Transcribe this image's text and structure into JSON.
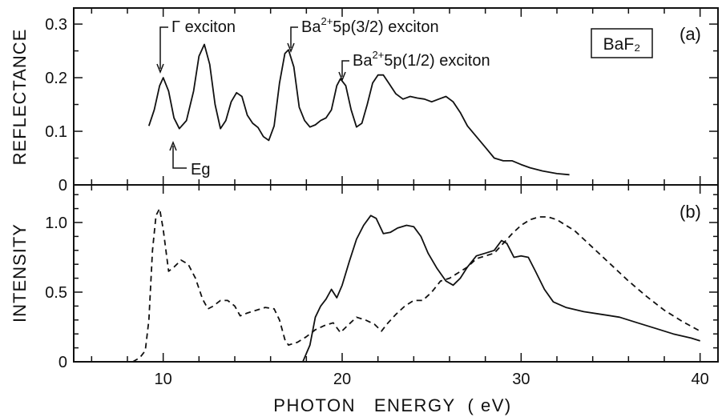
{
  "chart_data": [
    {
      "panel": "(a)",
      "type": "line",
      "ylabel": "REFLECTANCE",
      "xlim": [
        5,
        41
      ],
      "ylim": [
        0,
        0.33
      ],
      "x_ticks": [
        10,
        20,
        30,
        40
      ],
      "y_ticks": [
        0,
        0.1,
        0.2,
        0.3
      ],
      "y_tick_labels": [
        "0",
        "0.1",
        "0.2",
        "0.3"
      ],
      "grid": false,
      "series": [
        {
          "style": "solid",
          "points": [
            [
              9.2,
              0.11
            ],
            [
              9.5,
              0.14
            ],
            [
              9.8,
              0.185
            ],
            [
              10.0,
              0.2
            ],
            [
              10.3,
              0.175
            ],
            [
              10.6,
              0.125
            ],
            [
              10.9,
              0.105
            ],
            [
              11.3,
              0.12
            ],
            [
              11.7,
              0.175
            ],
            [
              12.0,
              0.24
            ],
            [
              12.3,
              0.262
            ],
            [
              12.6,
              0.225
            ],
            [
              12.9,
              0.15
            ],
            [
              13.2,
              0.105
            ],
            [
              13.5,
              0.12
            ],
            [
              13.8,
              0.155
            ],
            [
              14.1,
              0.172
            ],
            [
              14.4,
              0.165
            ],
            [
              14.7,
              0.13
            ],
            [
              15.0,
              0.115
            ],
            [
              15.3,
              0.107
            ],
            [
              15.6,
              0.09
            ],
            [
              15.9,
              0.083
            ],
            [
              16.2,
              0.11
            ],
            [
              16.5,
              0.19
            ],
            [
              16.8,
              0.245
            ],
            [
              17.0,
              0.252
            ],
            [
              17.3,
              0.22
            ],
            [
              17.6,
              0.145
            ],
            [
              17.9,
              0.12
            ],
            [
              18.2,
              0.108
            ],
            [
              18.5,
              0.112
            ],
            [
              18.8,
              0.12
            ],
            [
              19.1,
              0.125
            ],
            [
              19.4,
              0.14
            ],
            [
              19.7,
              0.185
            ],
            [
              19.9,
              0.198
            ],
            [
              20.2,
              0.185
            ],
            [
              20.5,
              0.14
            ],
            [
              20.8,
              0.108
            ],
            [
              21.1,
              0.115
            ],
            [
              21.4,
              0.15
            ],
            [
              21.7,
              0.19
            ],
            [
              22.0,
              0.205
            ],
            [
              22.3,
              0.205
            ],
            [
              22.6,
              0.19
            ],
            [
              23.0,
              0.17
            ],
            [
              23.4,
              0.16
            ],
            [
              23.8,
              0.165
            ],
            [
              24.2,
              0.162
            ],
            [
              24.6,
              0.16
            ],
            [
              25.0,
              0.155
            ],
            [
              25.4,
              0.16
            ],
            [
              25.8,
              0.165
            ],
            [
              26.2,
              0.155
            ],
            [
              26.6,
              0.135
            ],
            [
              27.0,
              0.11
            ],
            [
              27.5,
              0.09
            ],
            [
              28.0,
              0.07
            ],
            [
              28.5,
              0.05
            ],
            [
              29.0,
              0.045
            ],
            [
              29.5,
              0.045
            ],
            [
              30.0,
              0.038
            ],
            [
              30.5,
              0.032
            ],
            [
              31.2,
              0.026
            ],
            [
              32.0,
              0.021
            ],
            [
              32.7,
              0.019
            ]
          ]
        }
      ],
      "annotations": [
        {
          "text": "Γ exciton",
          "x": 10.0,
          "y": 0.2
        },
        {
          "text": "Ba²⁺5p(3/2) exciton",
          "x": 17.0,
          "y": 0.252
        },
        {
          "text": "Ba²⁺5p(1/2) exciton",
          "x": 19.9,
          "y": 0.198
        },
        {
          "text": "Eg",
          "x": 10.8,
          "y": 0.105
        }
      ],
      "legend_box": "BaF₂"
    },
    {
      "panel": "(b)",
      "type": "line",
      "xlabel": "PHOTON   ENERGY  ( eV)",
      "ylabel": "INTENSITY",
      "xlim": [
        5,
        41
      ],
      "ylim": [
        0,
        1.27
      ],
      "x_ticks": [
        10,
        20,
        30,
        40
      ],
      "x_tick_labels": [
        "10",
        "20",
        "30",
        "40"
      ],
      "y_ticks": [
        0,
        0.5,
        1.0
      ],
      "y_tick_labels": [
        "0",
        "0.5",
        "1.0"
      ],
      "grid": false,
      "series": [
        {
          "style": "solid",
          "points": [
            [
              17.8,
              0
            ],
            [
              18.2,
              0.12
            ],
            [
              18.5,
              0.32
            ],
            [
              18.8,
              0.4
            ],
            [
              19.1,
              0.45
            ],
            [
              19.4,
              0.52
            ],
            [
              19.7,
              0.46
            ],
            [
              20.0,
              0.55
            ],
            [
              20.4,
              0.72
            ],
            [
              20.8,
              0.88
            ],
            [
              21.2,
              0.98
            ],
            [
              21.6,
              1.05
            ],
            [
              21.9,
              1.03
            ],
            [
              22.3,
              0.92
            ],
            [
              22.7,
              0.93
            ],
            [
              23.1,
              0.96
            ],
            [
              23.6,
              0.98
            ],
            [
              24.0,
              0.97
            ],
            [
              24.4,
              0.9
            ],
            [
              24.8,
              0.78
            ],
            [
              25.3,
              0.67
            ],
            [
              25.8,
              0.58
            ],
            [
              26.2,
              0.55
            ],
            [
              26.6,
              0.6
            ],
            [
              27.0,
              0.68
            ],
            [
              27.5,
              0.76
            ],
            [
              28.0,
              0.78
            ],
            [
              28.5,
              0.8
            ],
            [
              28.9,
              0.87
            ],
            [
              29.2,
              0.85
            ],
            [
              29.6,
              0.75
            ],
            [
              30.0,
              0.76
            ],
            [
              30.4,
              0.75
            ],
            [
              30.8,
              0.65
            ],
            [
              31.3,
              0.52
            ],
            [
              31.8,
              0.43
            ],
            [
              32.5,
              0.39
            ],
            [
              33.5,
              0.36
            ],
            [
              34.5,
              0.34
            ],
            [
              35.5,
              0.32
            ],
            [
              36.5,
              0.28
            ],
            [
              37.5,
              0.24
            ],
            [
              38.5,
              0.2
            ],
            [
              39.5,
              0.17
            ],
            [
              40.0,
              0.15
            ]
          ]
        },
        {
          "style": "dashed",
          "points": [
            [
              8.3,
              0
            ],
            [
              8.7,
              0.03
            ],
            [
              9.0,
              0.08
            ],
            [
              9.2,
              0.3
            ],
            [
              9.4,
              0.8
            ],
            [
              9.6,
              1.05
            ],
            [
              9.8,
              1.1
            ],
            [
              10.0,
              0.95
            ],
            [
              10.3,
              0.65
            ],
            [
              10.6,
              0.68
            ],
            [
              11.0,
              0.73
            ],
            [
              11.4,
              0.7
            ],
            [
              11.8,
              0.6
            ],
            [
              12.2,
              0.45
            ],
            [
              12.5,
              0.38
            ],
            [
              12.8,
              0.4
            ],
            [
              13.2,
              0.44
            ],
            [
              13.6,
              0.44
            ],
            [
              14.0,
              0.4
            ],
            [
              14.3,
              0.33
            ],
            [
              14.7,
              0.35
            ],
            [
              15.2,
              0.37
            ],
            [
              15.7,
              0.39
            ],
            [
              16.2,
              0.38
            ],
            [
              16.5,
              0.3
            ],
            [
              16.8,
              0.16
            ],
            [
              17.0,
              0.12
            ],
            [
              17.5,
              0.14
            ],
            [
              18.0,
              0.18
            ],
            [
              18.5,
              0.23
            ],
            [
              19.0,
              0.26
            ],
            [
              19.5,
              0.28
            ],
            [
              19.9,
              0.21
            ],
            [
              20.3,
              0.26
            ],
            [
              20.8,
              0.32
            ],
            [
              21.3,
              0.3
            ],
            [
              21.8,
              0.27
            ],
            [
              22.2,
              0.22
            ],
            [
              22.5,
              0.27
            ],
            [
              23.0,
              0.34
            ],
            [
              23.5,
              0.4
            ],
            [
              24.0,
              0.44
            ],
            [
              24.5,
              0.44
            ],
            [
              25.0,
              0.5
            ],
            [
              25.5,
              0.58
            ],
            [
              26.0,
              0.6
            ],
            [
              26.5,
              0.64
            ],
            [
              27.0,
              0.68
            ],
            [
              27.5,
              0.74
            ],
            [
              28.0,
              0.76
            ],
            [
              28.5,
              0.78
            ],
            [
              29.0,
              0.85
            ],
            [
              29.5,
              0.92
            ],
            [
              30.0,
              0.98
            ],
            [
              30.5,
              1.02
            ],
            [
              31.0,
              1.04
            ],
            [
              31.5,
              1.04
            ],
            [
              32.0,
              1.02
            ],
            [
              33.0,
              0.94
            ],
            [
              34.0,
              0.82
            ],
            [
              35.0,
              0.7
            ],
            [
              36.0,
              0.58
            ],
            [
              37.0,
              0.47
            ],
            [
              38.0,
              0.37
            ],
            [
              39.0,
              0.29
            ],
            [
              40.0,
              0.22
            ]
          ]
        }
      ]
    }
  ],
  "labels": {
    "panel_a": "(a)",
    "panel_b": "(b)",
    "baf2": "BaF₂",
    "ylabel_a": "REFLECTANCE",
    "ylabel_b": "INTENSITY",
    "xlabel": "PHOTON   ENERGY  ( eV)",
    "gamma": "Γ exciton",
    "ba32_pre": "Ba",
    "ba32_sup": "2+",
    "ba32_post": "5p(3/2) exciton",
    "ba12_pre": "Ba",
    "ba12_sup": "2+",
    "ba12_post": "5p(1/2) exciton",
    "eg": "Eg"
  }
}
